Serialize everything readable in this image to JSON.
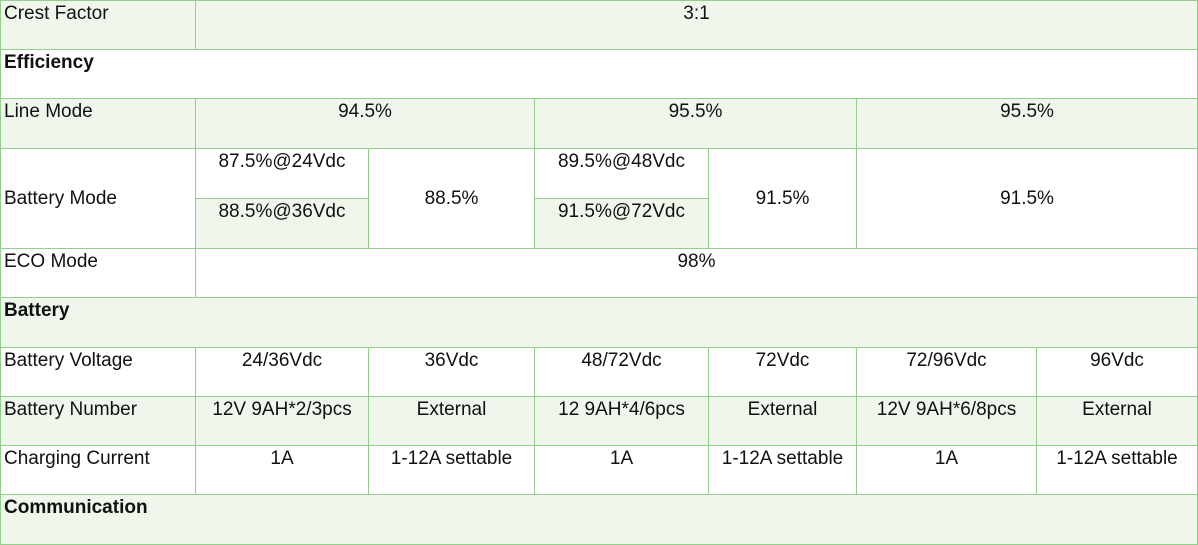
{
  "table": {
    "rows": [
      [
        "Crest Factor",
        "3:1"
      ],
      [
        "Efficiency"
      ],
      [
        "Line Mode",
        "94.5%",
        "95.5%",
        "95.5%"
      ],
      [
        "Battery Mode",
        "87.5%@24Vdc",
        "88.5%@36Vdc",
        "88.5%",
        "89.5%@48Vdc",
        "91.5%@72Vdc",
        "91.5%",
        "91.5%"
      ],
      [
        "ECO Mode",
        "98%"
      ],
      [
        "Battery"
      ],
      [
        "Battery Voltage",
        "24/36Vdc",
        "36Vdc",
        "48/72Vdc",
        "72Vdc",
        "72/96Vdc",
        "96Vdc"
      ],
      [
        "Battery Number",
        "12V 9AH*2/3pcs",
        "External",
        "12 9AH*4/6pcs",
        "External",
        "12V 9AH*6/8pcs",
        "External"
      ],
      [
        "Charging Current",
        "1A",
        "1-12A settable",
        "1A",
        "1-12A settable",
        "1A",
        "1-12A settable"
      ],
      [
        "Communication"
      ]
    ]
  }
}
